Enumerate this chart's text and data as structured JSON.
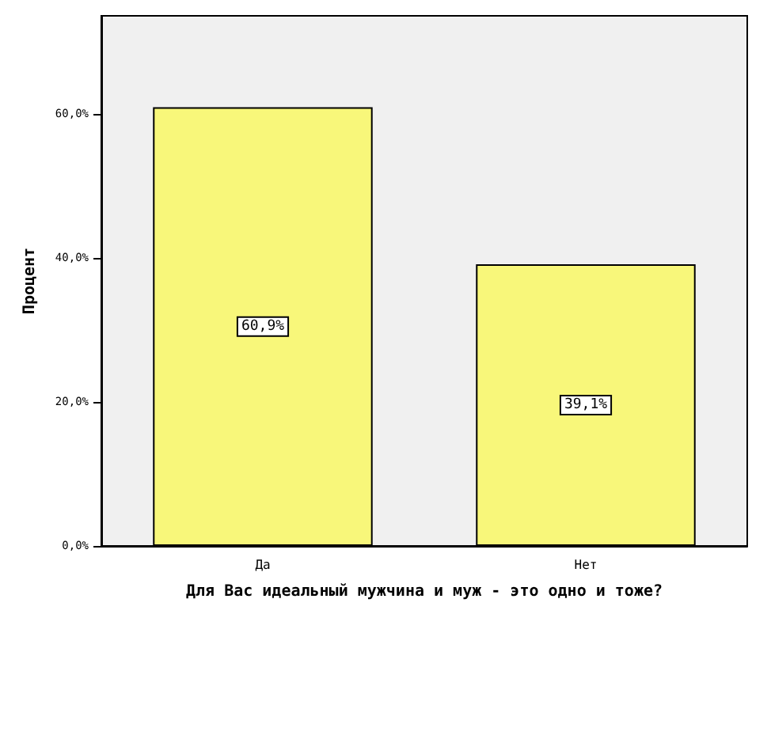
{
  "chart_data": {
    "type": "bar",
    "xlabel": "Для Вас идеальный мужчина и муж - это одно и тоже?",
    "ylabel": "Процент",
    "categories": [
      "Да",
      "Нет"
    ],
    "values": [
      60.9,
      39.1
    ],
    "value_labels": [
      "60,9%",
      "39,1%"
    ],
    "color": "#f8f77a",
    "ylim": [
      0,
      73.6
    ],
    "yticks": [
      {
        "value": 0,
        "label": "0,0%"
      },
      {
        "value": 20,
        "label": "20,0%"
      },
      {
        "value": 40,
        "label": "40,0%"
      },
      {
        "value": 60,
        "label": "60,0%"
      }
    ],
    "grid": false
  }
}
